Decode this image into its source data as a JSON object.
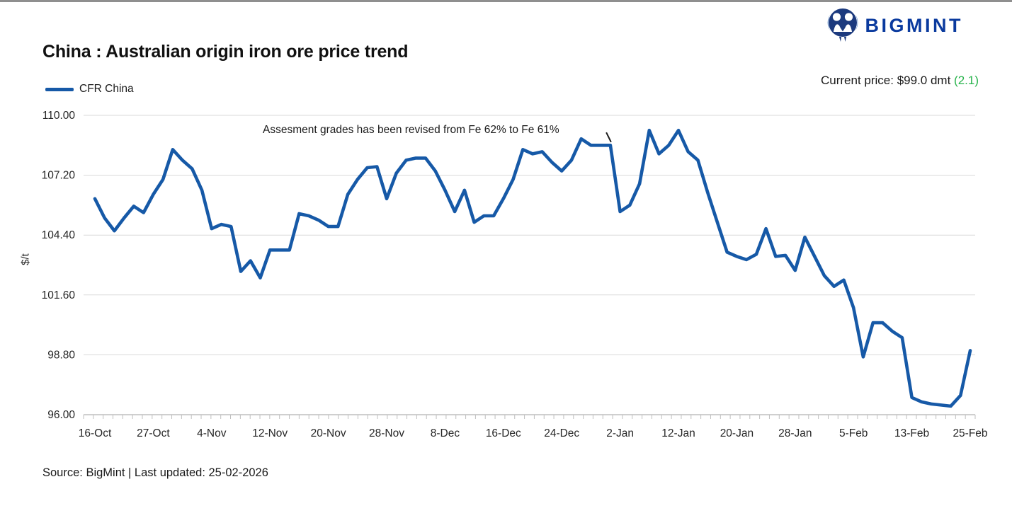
{
  "header": {
    "brand": "BIGMINT",
    "title": "China : Australian origin iron ore price trend",
    "current_price_label": "Current price: $99.0 dmt ",
    "current_price_change": "(2.1)"
  },
  "legend": {
    "series_label": "CFR China"
  },
  "annotation": {
    "text": "Assesment grades has been revised from Fe 62% to Fe 61%"
  },
  "footer": {
    "source_line": "Source: BigMint | Last updated: 25-02-2026"
  },
  "colors": {
    "line": "#1659a7",
    "brand_blue": "#0a3a9e",
    "logo_navy": "#1c3a7e",
    "logo_light_blue": "#3a76c0",
    "green": "#27b34b",
    "grid": "#d9d9d9",
    "axis": "#bfbfbf",
    "text": "#1a1a1a"
  },
  "chart_data": {
    "type": "line",
    "title": "China : Australian origin iron ore price trend",
    "xlabel": "",
    "ylabel": "$/t",
    "ylim": [
      96,
      110
    ],
    "y_ticks": [
      110.0,
      107.2,
      104.4,
      101.6,
      98.8,
      96.0
    ],
    "x_tick_labels": [
      "16-Oct",
      "27-Oct",
      "4-Nov",
      "12-Nov",
      "20-Nov",
      "28-Nov",
      "8-Dec",
      "16-Dec",
      "24-Dec",
      "2-Jan",
      "12-Jan",
      "20-Jan",
      "28-Jan",
      "5-Feb",
      "13-Feb",
      "25-Feb"
    ],
    "points_per_label": 6,
    "grid": "horizontal",
    "legend_position": "top-left",
    "annotation": {
      "text": "Assesment grades has been revised from Fe 62% to Fe 61%",
      "pointer_from_index": 52,
      "pointer_to_index": 53
    },
    "series": [
      {
        "name": "CFR China",
        "color": "#1659a7",
        "values": [
          106.1,
          105.2,
          104.6,
          105.2,
          105.75,
          105.45,
          106.3,
          107.0,
          108.4,
          107.9,
          107.5,
          106.5,
          104.7,
          104.9,
          104.8,
          102.7,
          103.2,
          102.4,
          103.7,
          103.7,
          103.7,
          105.4,
          105.3,
          105.1,
          104.8,
          104.8,
          106.3,
          107.0,
          107.55,
          107.6,
          106.1,
          107.3,
          107.9,
          108.0,
          108.0,
          107.4,
          106.5,
          105.5,
          106.5,
          105.0,
          105.3,
          105.3,
          106.1,
          107.0,
          108.4,
          108.2,
          108.3,
          107.8,
          107.4,
          107.9,
          108.9,
          108.6,
          108.6,
          108.6,
          105.5,
          105.8,
          106.8,
          109.3,
          108.2,
          108.6,
          109.3,
          108.3,
          107.9,
          106.4,
          105.0,
          103.6,
          103.4,
          103.25,
          103.5,
          104.7,
          103.4,
          103.45,
          102.75,
          104.3,
          103.4,
          102.5,
          102.0,
          102.3,
          101.0,
          98.7,
          100.3,
          100.3,
          99.9,
          99.6,
          96.8,
          96.6,
          96.5,
          96.45,
          96.4,
          96.9,
          99.0
        ]
      }
    ]
  }
}
